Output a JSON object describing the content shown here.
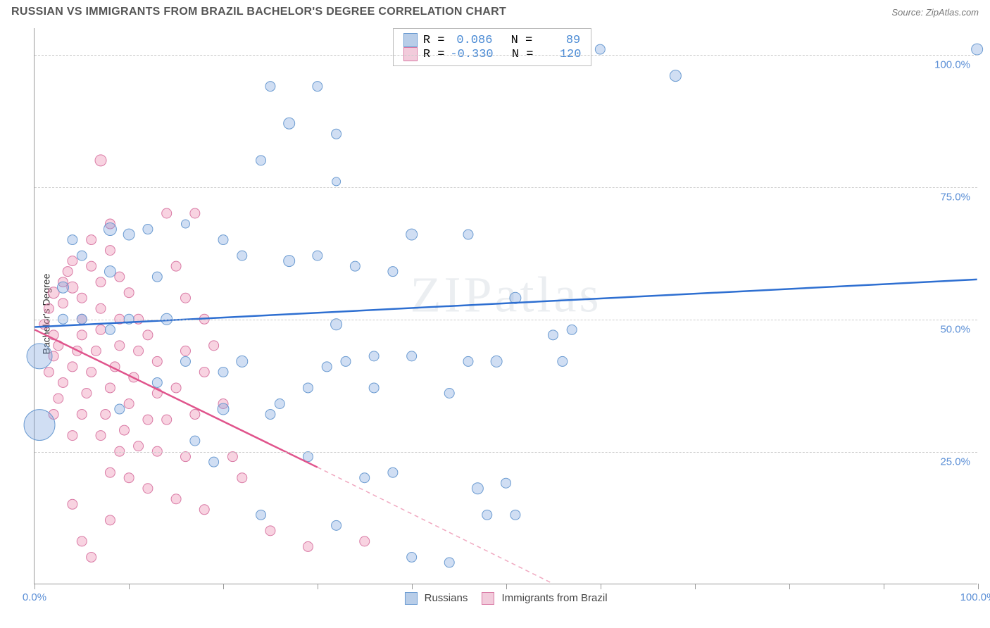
{
  "title": "RUSSIAN VS IMMIGRANTS FROM BRAZIL BACHELOR'S DEGREE CORRELATION CHART",
  "source_label": "Source: ZipAtlas.com",
  "y_axis_label": "Bachelor's Degree",
  "watermark": "ZIPatlas",
  "chart": {
    "type": "scatter",
    "xlim": [
      0,
      100
    ],
    "ylim": [
      0,
      105
    ],
    "x_ticks": [
      0,
      10,
      20,
      30,
      40,
      50,
      60,
      70,
      80,
      90,
      100
    ],
    "x_tick_labels_shown": {
      "0": "0.0%",
      "100": "100.0%"
    },
    "y_ticks": [
      25,
      50,
      75,
      100
    ],
    "y_tick_labels": {
      "25": "25.0%",
      "50": "50.0%",
      "75": "75.0%",
      "100": "100.0%"
    },
    "background_color": "#ffffff",
    "grid_color": "#cccccc",
    "axis_color": "#999999",
    "tick_label_color": "#5b8fd6"
  },
  "series": {
    "russians": {
      "label": "Russians",
      "color_fill": "rgba(120,160,220,0.35)",
      "color_stroke": "#6b9bd1",
      "swatch_fill": "#b8cde8",
      "swatch_border": "#6b9bd1",
      "stats": {
        "R": "0.086",
        "N": "89"
      },
      "trend": {
        "x1": 0,
        "y1": 48.5,
        "x2": 100,
        "y2": 57.5,
        "color": "#2e6fd1",
        "width": 2.5,
        "dash": "none"
      },
      "points": [
        {
          "x": 0.5,
          "y": 43,
          "r": 18
        },
        {
          "x": 0.5,
          "y": 30,
          "r": 22
        },
        {
          "x": 58,
          "y": 102,
          "r": 11
        },
        {
          "x": 60,
          "y": 101,
          "r": 7
        },
        {
          "x": 68,
          "y": 96,
          "r": 8
        },
        {
          "x": 100,
          "y": 101,
          "r": 8
        },
        {
          "x": 25,
          "y": 94,
          "r": 7
        },
        {
          "x": 30,
          "y": 94,
          "r": 7
        },
        {
          "x": 27,
          "y": 87,
          "r": 8
        },
        {
          "x": 32,
          "y": 85,
          "r": 7
        },
        {
          "x": 24,
          "y": 80,
          "r": 7
        },
        {
          "x": 32,
          "y": 76,
          "r": 6
        },
        {
          "x": 8,
          "y": 67,
          "r": 9
        },
        {
          "x": 10,
          "y": 66,
          "r": 8
        },
        {
          "x": 12,
          "y": 67,
          "r": 7
        },
        {
          "x": 16,
          "y": 68,
          "r": 6
        },
        {
          "x": 20,
          "y": 65,
          "r": 7
        },
        {
          "x": 5,
          "y": 62,
          "r": 7
        },
        {
          "x": 8,
          "y": 59,
          "r": 8
        },
        {
          "x": 13,
          "y": 58,
          "r": 7
        },
        {
          "x": 22,
          "y": 62,
          "r": 7
        },
        {
          "x": 27,
          "y": 61,
          "r": 8
        },
        {
          "x": 30,
          "y": 62,
          "r": 7
        },
        {
          "x": 34,
          "y": 60,
          "r": 7
        },
        {
          "x": 38,
          "y": 59,
          "r": 7
        },
        {
          "x": 40,
          "y": 66,
          "r": 8
        },
        {
          "x": 46,
          "y": 66,
          "r": 7
        },
        {
          "x": 51,
          "y": 54,
          "r": 8
        },
        {
          "x": 55,
          "y": 47,
          "r": 7
        },
        {
          "x": 57,
          "y": 48,
          "r": 7
        },
        {
          "x": 56,
          "y": 42,
          "r": 7
        },
        {
          "x": 49,
          "y": 42,
          "r": 8
        },
        {
          "x": 46,
          "y": 42,
          "r": 7
        },
        {
          "x": 44,
          "y": 36,
          "r": 7
        },
        {
          "x": 40,
          "y": 43,
          "r": 7
        },
        {
          "x": 36,
          "y": 43,
          "r": 7
        },
        {
          "x": 33,
          "y": 42,
          "r": 7
        },
        {
          "x": 31,
          "y": 41,
          "r": 7
        },
        {
          "x": 29,
          "y": 37,
          "r": 7
        },
        {
          "x": 26,
          "y": 34,
          "r": 7
        },
        {
          "x": 22,
          "y": 42,
          "r": 8
        },
        {
          "x": 20,
          "y": 40,
          "r": 7
        },
        {
          "x": 20,
          "y": 33,
          "r": 8
        },
        {
          "x": 16,
          "y": 42,
          "r": 7
        },
        {
          "x": 14,
          "y": 50,
          "r": 8
        },
        {
          "x": 10,
          "y": 50,
          "r": 7
        },
        {
          "x": 8,
          "y": 48,
          "r": 7
        },
        {
          "x": 5,
          "y": 50,
          "r": 7
        },
        {
          "x": 3,
          "y": 50,
          "r": 7
        },
        {
          "x": 3,
          "y": 56,
          "r": 8
        },
        {
          "x": 4,
          "y": 65,
          "r": 7
        },
        {
          "x": 32,
          "y": 49,
          "r": 8
        },
        {
          "x": 29,
          "y": 24,
          "r": 7
        },
        {
          "x": 24,
          "y": 13,
          "r": 7
        },
        {
          "x": 32,
          "y": 11,
          "r": 7
        },
        {
          "x": 35,
          "y": 20,
          "r": 7
        },
        {
          "x": 38,
          "y": 21,
          "r": 7
        },
        {
          "x": 40,
          "y": 5,
          "r": 7
        },
        {
          "x": 44,
          "y": 4,
          "r": 7
        },
        {
          "x": 47,
          "y": 18,
          "r": 8
        },
        {
          "x": 48,
          "y": 13,
          "r": 7
        },
        {
          "x": 51,
          "y": 13,
          "r": 7
        },
        {
          "x": 50,
          "y": 19,
          "r": 7
        },
        {
          "x": 36,
          "y": 37,
          "r": 7
        },
        {
          "x": 13,
          "y": 38,
          "r": 7
        },
        {
          "x": 17,
          "y": 27,
          "r": 7
        },
        {
          "x": 19,
          "y": 23,
          "r": 7
        },
        {
          "x": 9,
          "y": 33,
          "r": 7
        },
        {
          "x": 25,
          "y": 32,
          "r": 7
        }
      ]
    },
    "brazil": {
      "label": "Immigrants from Brazil",
      "color_fill": "rgba(235,130,170,0.35)",
      "color_stroke": "#d97aa5",
      "swatch_fill": "#f2cbdb",
      "swatch_border": "#d97aa5",
      "stats": {
        "R": "-0.330",
        "N": "120"
      },
      "trend_solid": {
        "x1": 0,
        "y1": 48,
        "x2": 30,
        "y2": 22,
        "color": "#e0548c",
        "width": 2.5
      },
      "trend_dash": {
        "x1": 30,
        "y1": 22,
        "x2": 55,
        "y2": 0,
        "color": "#f0a8c0",
        "width": 1.5
      },
      "points": [
        {
          "x": 1,
          "y": 49,
          "r": 7
        },
        {
          "x": 1.5,
          "y": 52,
          "r": 7
        },
        {
          "x": 2,
          "y": 55,
          "r": 8
        },
        {
          "x": 2,
          "y": 47,
          "r": 7
        },
        {
          "x": 2.5,
          "y": 45,
          "r": 7
        },
        {
          "x": 2,
          "y": 43,
          "r": 7
        },
        {
          "x": 1.5,
          "y": 40,
          "r": 7
        },
        {
          "x": 3,
          "y": 53,
          "r": 7
        },
        {
          "x": 3,
          "y": 57,
          "r": 7
        },
        {
          "x": 3.5,
          "y": 59,
          "r": 7
        },
        {
          "x": 4,
          "y": 61,
          "r": 7
        },
        {
          "x": 4,
          "y": 56,
          "r": 8
        },
        {
          "x": 5,
          "y": 54,
          "r": 7
        },
        {
          "x": 5,
          "y": 50,
          "r": 7
        },
        {
          "x": 5,
          "y": 47,
          "r": 7
        },
        {
          "x": 4.5,
          "y": 44,
          "r": 7
        },
        {
          "x": 4,
          "y": 41,
          "r": 7
        },
        {
          "x": 3,
          "y": 38,
          "r": 7
        },
        {
          "x": 2.5,
          "y": 35,
          "r": 7
        },
        {
          "x": 2,
          "y": 32,
          "r": 7
        },
        {
          "x": 6,
          "y": 65,
          "r": 7
        },
        {
          "x": 6,
          "y": 60,
          "r": 7
        },
        {
          "x": 7,
          "y": 57,
          "r": 7
        },
        {
          "x": 7,
          "y": 52,
          "r": 7
        },
        {
          "x": 7,
          "y": 48,
          "r": 7
        },
        {
          "x": 6.5,
          "y": 44,
          "r": 7
        },
        {
          "x": 6,
          "y": 40,
          "r": 7
        },
        {
          "x": 5.5,
          "y": 36,
          "r": 7
        },
        {
          "x": 5,
          "y": 32,
          "r": 7
        },
        {
          "x": 4,
          "y": 28,
          "r": 7
        },
        {
          "x": 7,
          "y": 80,
          "r": 8
        },
        {
          "x": 8,
          "y": 68,
          "r": 7
        },
        {
          "x": 8,
          "y": 63,
          "r": 7
        },
        {
          "x": 9,
          "y": 58,
          "r": 7
        },
        {
          "x": 9,
          "y": 50,
          "r": 7
        },
        {
          "x": 9,
          "y": 45,
          "r": 7
        },
        {
          "x": 8.5,
          "y": 41,
          "r": 7
        },
        {
          "x": 8,
          "y": 37,
          "r": 7
        },
        {
          "x": 7.5,
          "y": 32,
          "r": 7
        },
        {
          "x": 7,
          "y": 28,
          "r": 7
        },
        {
          "x": 10,
          "y": 55,
          "r": 7
        },
        {
          "x": 11,
          "y": 50,
          "r": 7
        },
        {
          "x": 11,
          "y": 44,
          "r": 7
        },
        {
          "x": 10.5,
          "y": 39,
          "r": 7
        },
        {
          "x": 10,
          "y": 34,
          "r": 7
        },
        {
          "x": 9.5,
          "y": 29,
          "r": 7
        },
        {
          "x": 9,
          "y": 25,
          "r": 7
        },
        {
          "x": 8,
          "y": 21,
          "r": 7
        },
        {
          "x": 12,
          "y": 47,
          "r": 7
        },
        {
          "x": 13,
          "y": 42,
          "r": 7
        },
        {
          "x": 13,
          "y": 36,
          "r": 7
        },
        {
          "x": 12,
          "y": 31,
          "r": 7
        },
        {
          "x": 11,
          "y": 26,
          "r": 7
        },
        {
          "x": 10,
          "y": 20,
          "r": 7
        },
        {
          "x": 14,
          "y": 70,
          "r": 7
        },
        {
          "x": 15,
          "y": 60,
          "r": 7
        },
        {
          "x": 16,
          "y": 54,
          "r": 7
        },
        {
          "x": 16,
          "y": 44,
          "r": 7
        },
        {
          "x": 15,
          "y": 37,
          "r": 7
        },
        {
          "x": 14,
          "y": 31,
          "r": 7
        },
        {
          "x": 13,
          "y": 25,
          "r": 7
        },
        {
          "x": 12,
          "y": 18,
          "r": 7
        },
        {
          "x": 17,
          "y": 70,
          "r": 7
        },
        {
          "x": 18,
          "y": 50,
          "r": 7
        },
        {
          "x": 18,
          "y": 40,
          "r": 7
        },
        {
          "x": 17,
          "y": 32,
          "r": 7
        },
        {
          "x": 16,
          "y": 24,
          "r": 7
        },
        {
          "x": 15,
          "y": 16,
          "r": 7
        },
        {
          "x": 19,
          "y": 45,
          "r": 7
        },
        {
          "x": 20,
          "y": 34,
          "r": 7
        },
        {
          "x": 21,
          "y": 24,
          "r": 7
        },
        {
          "x": 18,
          "y": 14,
          "r": 7
        },
        {
          "x": 22,
          "y": 20,
          "r": 7
        },
        {
          "x": 25,
          "y": 10,
          "r": 7
        },
        {
          "x": 29,
          "y": 7,
          "r": 7
        },
        {
          "x": 35,
          "y": 8,
          "r": 7
        },
        {
          "x": 5,
          "y": 8,
          "r": 7
        },
        {
          "x": 4,
          "y": 15,
          "r": 7
        },
        {
          "x": 6,
          "y": 5,
          "r": 7
        },
        {
          "x": 8,
          "y": 12,
          "r": 7
        }
      ]
    }
  },
  "bottom_legend": {
    "s1": "Russians",
    "s2": "Immigrants from Brazil"
  },
  "stats_labels": {
    "R": "R =",
    "N": "N ="
  }
}
